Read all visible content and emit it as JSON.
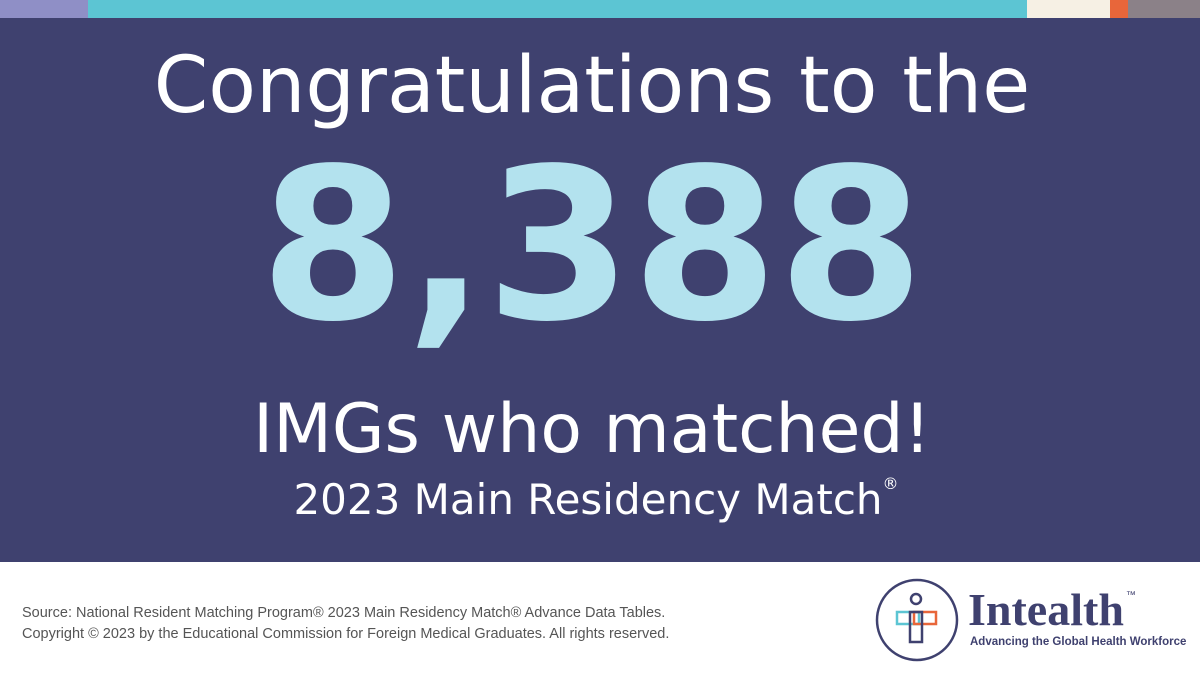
{
  "headline": "Congratulations to the",
  "number": "8,388",
  "subline": "IMGs who matched!",
  "event": {
    "text": "2023 Main Residency Match",
    "mark": "®"
  },
  "footer": {
    "source": "Source: National Resident Matching Program® 2023 Main Residency Match® Advance Data Tables.",
    "copyright": "Copyright © 2023 by the Educational Commission for Foreign Medical Graduates. All rights reserved."
  },
  "logo": {
    "name": "Intealth",
    "trademark": "™",
    "tagline": "Advancing the Global Health Workforce"
  }
}
